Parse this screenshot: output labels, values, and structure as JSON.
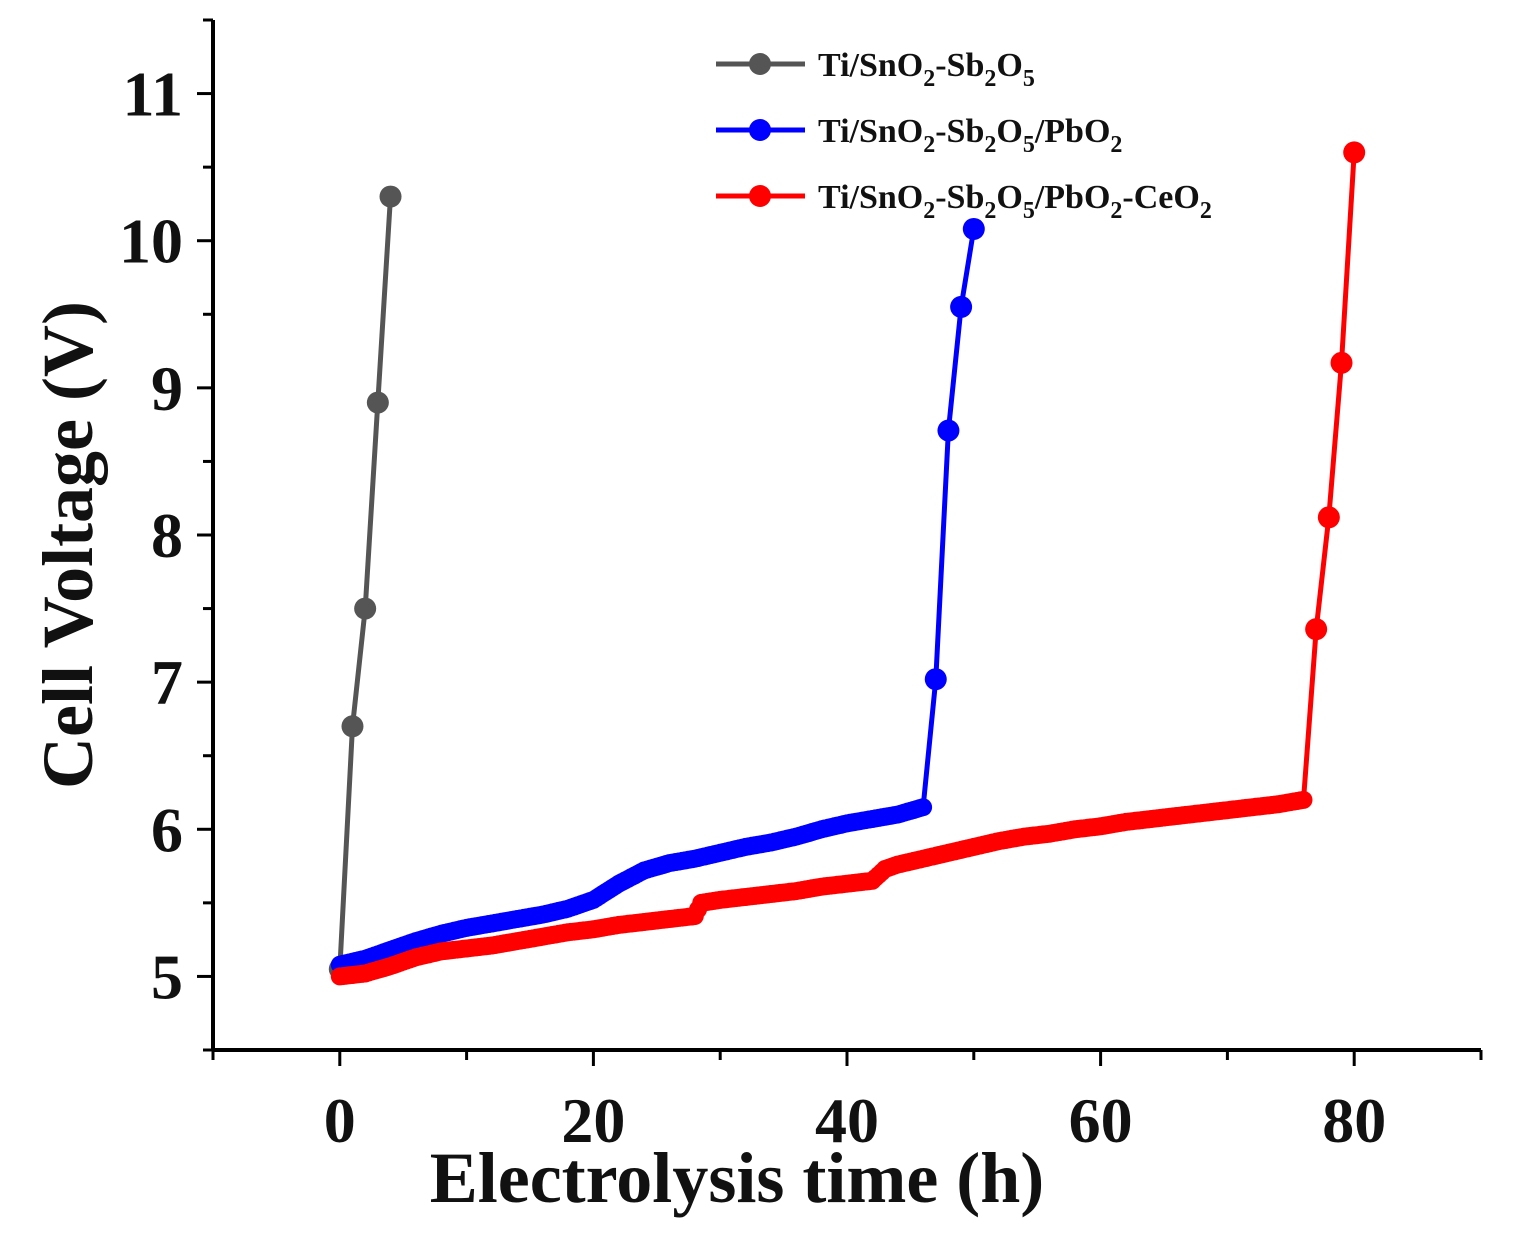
{
  "chart_data": {
    "type": "line",
    "title": "",
    "xlabel": "Electrolysis time (h)",
    "ylabel": "Cell Voltage (V)",
    "xlim": [
      -10,
      90
    ],
    "ylim": [
      4.5,
      11.5
    ],
    "xticks": [
      0,
      20,
      40,
      60,
      80
    ],
    "xtick_labels": [
      "0",
      "20",
      "40",
      "60",
      "80"
    ],
    "yticks": [
      5,
      6,
      7,
      8,
      9,
      10,
      11
    ],
    "ytick_labels": [
      "5",
      "6",
      "7",
      "8",
      "9",
      "10",
      "11"
    ],
    "legend_position": "top-right",
    "series": [
      {
        "name": "Ti/SnO2-Sb2O5",
        "legend_parts": [
          [
            "Ti/SnO",
            "n"
          ],
          [
            "2",
            "s"
          ],
          [
            "-Sb",
            "n"
          ],
          [
            "2",
            "s"
          ],
          [
            "O",
            "n"
          ],
          [
            "5",
            "s"
          ]
        ],
        "color": "#555555",
        "x": [
          0,
          1,
          2,
          3,
          4
        ],
        "y": [
          5.05,
          6.7,
          7.5,
          8.9,
          10.3
        ]
      },
      {
        "name": "Ti/SnO2-Sb2O5/PbO2",
        "legend_parts": [
          [
            "Ti/SnO",
            "n"
          ],
          [
            "2",
            "s"
          ],
          [
            "-Sb",
            "n"
          ],
          [
            "2",
            "s"
          ],
          [
            "O",
            "n"
          ],
          [
            "5",
            "s"
          ],
          [
            "/PbO",
            "n"
          ],
          [
            "2",
            "s"
          ]
        ],
        "color": "#0000ff",
        "x": [
          0,
          2,
          4,
          6,
          8,
          10,
          12,
          14,
          16,
          18,
          20,
          22,
          24,
          26,
          28,
          30,
          32,
          34,
          36,
          38,
          40,
          42,
          44,
          46,
          47,
          48,
          49,
          50
        ],
        "y": [
          5.08,
          5.12,
          5.18,
          5.24,
          5.29,
          5.33,
          5.36,
          5.39,
          5.42,
          5.46,
          5.52,
          5.63,
          5.72,
          5.77,
          5.8,
          5.84,
          5.88,
          5.91,
          5.95,
          6.0,
          6.04,
          6.07,
          6.1,
          6.15,
          7.02,
          8.71,
          9.55,
          10.08
        ],
        "markers": [
          0,
          46,
          47,
          48,
          49,
          50
        ]
      },
      {
        "name": "Ti/SnO2-Sb2O5/PbO2-CeO2",
        "legend_parts": [
          [
            "Ti/SnO",
            "n"
          ],
          [
            "2",
            "s"
          ],
          [
            "-Sb",
            "n"
          ],
          [
            "2",
            "s"
          ],
          [
            "O",
            "n"
          ],
          [
            "5",
            "s"
          ],
          [
            "/PbO",
            "n"
          ],
          [
            "2",
            "s"
          ],
          [
            "-CeO",
            "n"
          ],
          [
            "2",
            "s"
          ]
        ],
        "color": "#ff0000",
        "x": [
          0,
          2,
          4,
          6,
          8,
          10,
          12,
          14,
          16,
          18,
          20,
          22,
          24,
          26,
          28,
          28.5,
          30,
          32,
          34,
          36,
          38,
          40,
          42,
          43,
          44,
          46,
          48,
          50,
          52,
          54,
          56,
          58,
          60,
          62,
          64,
          66,
          68,
          70,
          72,
          74,
          76,
          77,
          78,
          79,
          80
        ],
        "y": [
          5.0,
          5.02,
          5.07,
          5.13,
          5.17,
          5.19,
          5.21,
          5.24,
          5.27,
          5.3,
          5.32,
          5.35,
          5.37,
          5.39,
          5.41,
          5.5,
          5.52,
          5.54,
          5.56,
          5.58,
          5.61,
          5.63,
          5.65,
          5.73,
          5.76,
          5.8,
          5.84,
          5.88,
          5.92,
          5.95,
          5.97,
          6.0,
          6.02,
          6.05,
          6.07,
          6.09,
          6.11,
          6.13,
          6.15,
          6.17,
          6.2,
          7.36,
          8.12,
          9.17,
          10.6
        ],
        "markers": [
          0,
          76,
          77,
          78,
          79,
          80
        ]
      }
    ]
  }
}
